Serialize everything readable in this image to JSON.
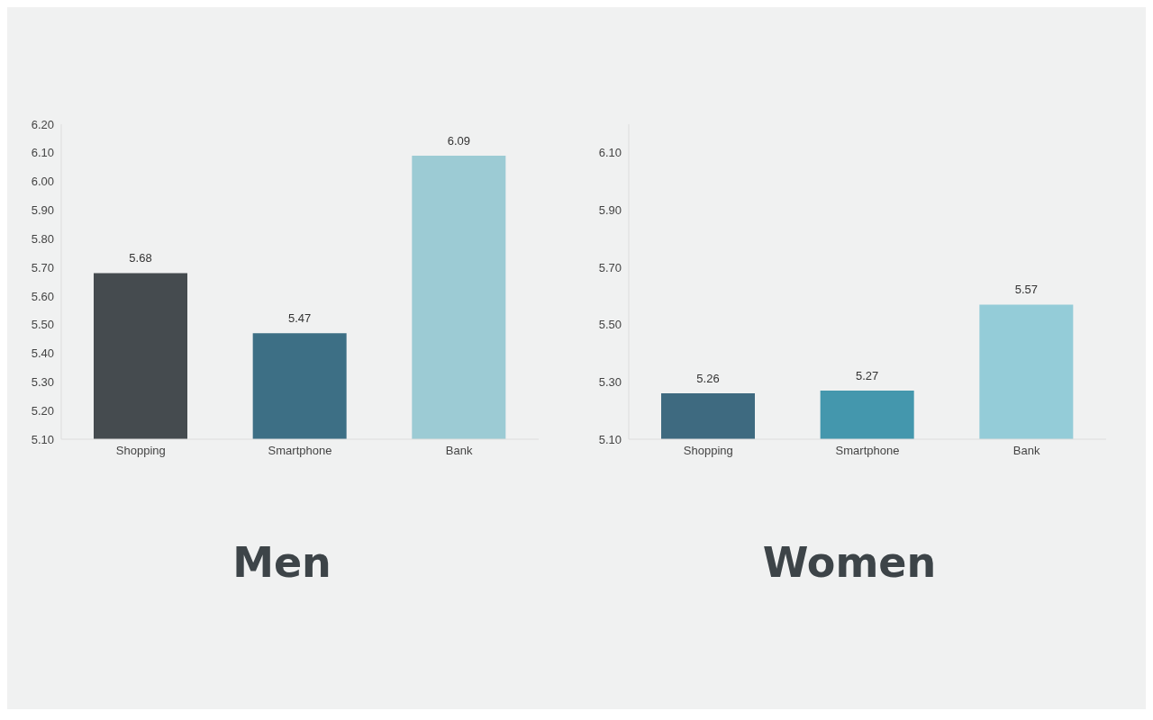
{
  "chart_data": [
    {
      "type": "bar",
      "title": "Men",
      "categories": [
        "Shopping",
        "Smartphone",
        "Bank"
      ],
      "values": [
        5.68,
        5.47,
        6.09
      ],
      "colors": [
        "#454b4f",
        "#3d6f85",
        "#9ccbd4"
      ],
      "ylim": [
        5.1,
        6.2
      ],
      "yticks": [
        {
          "value": 5.1,
          "label": "5.10"
        },
        {
          "value": 5.2,
          "label": "5.20"
        },
        {
          "value": 5.3,
          "label": "5.30"
        },
        {
          "value": 5.4,
          "label": "5.40"
        },
        {
          "value": 5.5,
          "label": "5.50"
        },
        {
          "value": 5.6,
          "label": "5.60"
        },
        {
          "value": 5.7,
          "label": "5.70"
        },
        {
          "value": 5.8,
          "label": "5.80"
        },
        {
          "value": 5.9,
          "label": "5.90"
        },
        {
          "value": 6.0,
          "label": "6.00"
        },
        {
          "value": 6.1,
          "label": "6.10"
        },
        {
          "value": 6.2,
          "label": "6.20"
        }
      ],
      "data_labels": true,
      "grid": false,
      "legend": false
    },
    {
      "type": "bar",
      "title": "Women",
      "categories": [
        "Shopping",
        "Smartphone",
        "Bank"
      ],
      "values": [
        5.26,
        5.27,
        5.57
      ],
      "colors": [
        "#3e6a80",
        "#4497ad",
        "#94ccd8"
      ],
      "ylim": [
        5.1,
        6.2
      ],
      "yticks": [
        {
          "value": 5.1,
          "label": "5.10"
        },
        {
          "value": 5.3,
          "label": "5.30"
        },
        {
          "value": 5.5,
          "label": "5.50"
        },
        {
          "value": 5.7,
          "label": "5.70"
        },
        {
          "value": 5.9,
          "label": "5.90"
        },
        {
          "value": 6.1,
          "label": "6.10"
        }
      ],
      "data_labels": true,
      "grid": false,
      "legend": false
    }
  ]
}
